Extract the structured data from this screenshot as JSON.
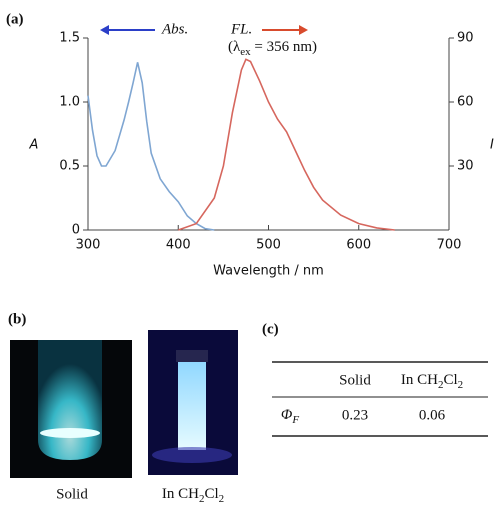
{
  "chart_data": {
    "type": "line",
    "panel_label": "(a)",
    "xlabel": "Wavelength / nm",
    "ylabel": "A",
    "y2label": "I",
    "xlim": [
      300,
      700
    ],
    "xticks": [
      300,
      400,
      500,
      600,
      700
    ],
    "ylim": [
      0,
      1.5
    ],
    "yticks": [
      0,
      0.5,
      {
        "value": 1,
        "label": "1.0"
      },
      {
        "value": 1.5,
        "label": "1.5"
      }
    ],
    "y2lim": [
      0,
      90
    ],
    "y2ticks": [
      30,
      60,
      90
    ],
    "excitation_note": [
      "(λ",
      "ex",
      " = 356 nm)"
    ],
    "series": [
      {
        "name": "Abs.",
        "color": "#7fa6d2",
        "arrow_color": "#2b3fc8",
        "x": [
          300,
          305,
          310,
          315,
          320,
          330,
          340,
          345,
          350,
          355,
          360,
          365,
          370,
          380,
          390,
          400,
          410,
          420,
          430,
          440
        ],
        "values": [
          1.05,
          0.78,
          0.58,
          0.5,
          0.5,
          0.62,
          0.86,
          1.0,
          1.15,
          1.31,
          1.15,
          0.85,
          0.6,
          0.4,
          0.3,
          0.22,
          0.11,
          0.05,
          0.01,
          0
        ]
      },
      {
        "name": "FL.",
        "color": "#d6675e",
        "arrow_color": "#d84b2d",
        "axis": "y2",
        "x": [
          400,
          420,
          440,
          450,
          460,
          470,
          475,
          480,
          490,
          500,
          510,
          520,
          530,
          540,
          550,
          560,
          580,
          600,
          620,
          640
        ],
        "values": [
          0,
          3,
          15,
          30,
          55,
          75,
          80,
          79,
          70,
          60,
          52,
          46,
          37,
          28,
          20,
          14,
          7,
          3,
          1,
          0
        ]
      }
    ]
  },
  "photos": {
    "panel_label": "(b)",
    "captions": [
      "Solid",
      [
        "In CH",
        "2",
        "Cl",
        "2"
      ]
    ]
  },
  "table": {
    "panel_label": "(c)",
    "header": [
      "Solid",
      [
        "In CH",
        "2",
        "Cl",
        "2"
      ]
    ],
    "row": {
      "symbol": [
        "Φ",
        "F"
      ],
      "values": [
        "0.23",
        "0.06"
      ]
    }
  }
}
